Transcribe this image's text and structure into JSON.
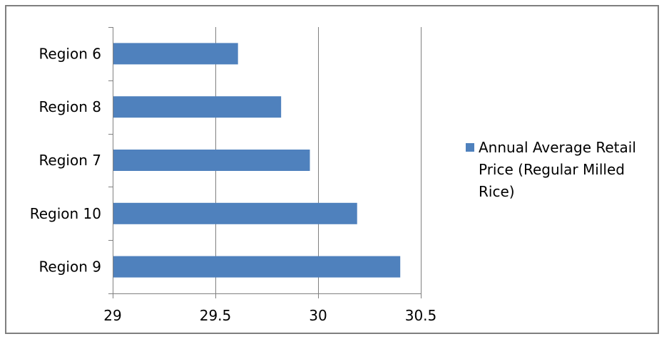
{
  "chart_data": {
    "type": "bar",
    "orientation": "horizontal",
    "categories": [
      "Region 6",
      "Region 8",
      "Region 7",
      "Region 10",
      "Region 9"
    ],
    "series": [
      {
        "name": "Annual Average Retail Price (Regular Milled Rice)",
        "values": [
          29.61,
          29.82,
          29.96,
          30.19,
          30.4
        ],
        "color": "#4f81bd"
      }
    ],
    "xlim": [
      29,
      30.5
    ],
    "x_ticks": [
      29,
      29.5,
      30,
      30.5
    ],
    "x_tick_labels": [
      "29",
      "29.5",
      "30",
      "30.5"
    ],
    "grid": "vertical",
    "legend_position": "right",
    "legend_lines": [
      "Annual Average Retail",
      "Price (Regular Milled",
      "Rice)"
    ],
    "title": "",
    "xlabel": "",
    "ylabel": ""
  }
}
